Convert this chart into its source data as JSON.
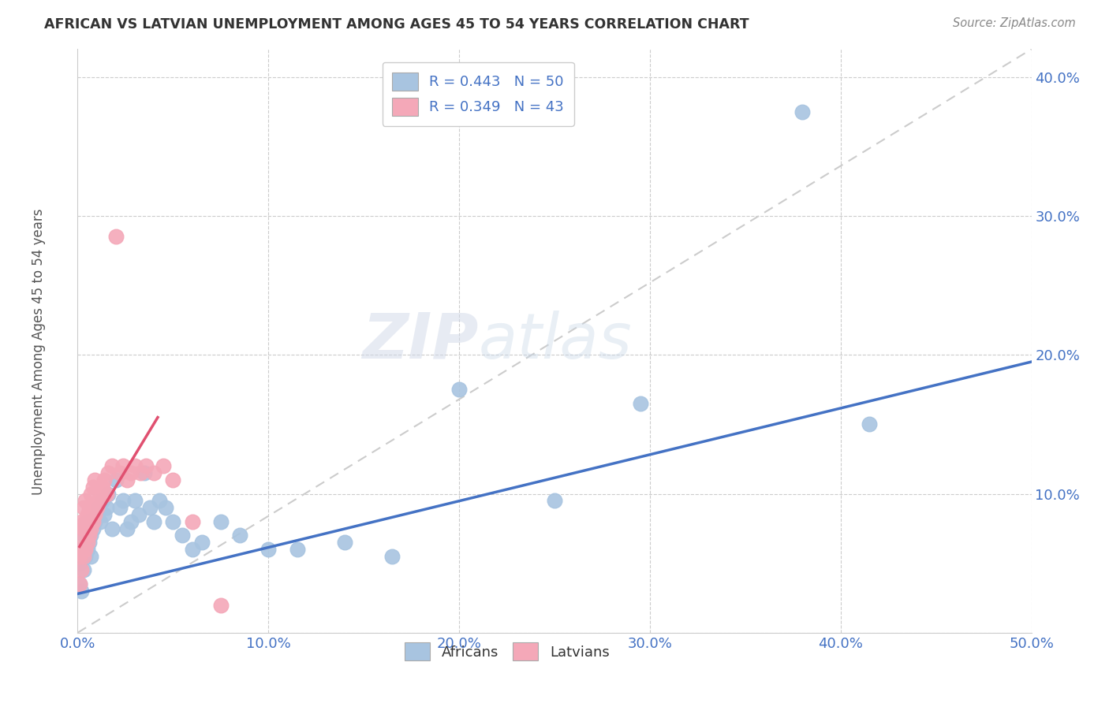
{
  "title": "AFRICAN VS LATVIAN UNEMPLOYMENT AMONG AGES 45 TO 54 YEARS CORRELATION CHART",
  "source": "Source: ZipAtlas.com",
  "ylabel": "Unemployment Among Ages 45 to 54 years",
  "xlim": [
    0.0,
    0.5
  ],
  "ylim": [
    0.0,
    0.42
  ],
  "xtick_vals": [
    0.0,
    0.1,
    0.2,
    0.3,
    0.4,
    0.5
  ],
  "ytick_vals": [
    0.0,
    0.1,
    0.2,
    0.3,
    0.4
  ],
  "xtick_labels": [
    "0.0%",
    "10.0%",
    "20.0%",
    "30.0%",
    "40.0%",
    "50.0%"
  ],
  "ytick_labels": [
    "",
    "10.0%",
    "20.0%",
    "30.0%",
    "40.0%"
  ],
  "african_color": "#a8c4e0",
  "african_edge": "#7aafd4",
  "latvian_color": "#f4a8b8",
  "latvian_edge": "#e87a95",
  "african_line_color": "#4472c4",
  "latvian_line_color": "#e05070",
  "african_R": 0.443,
  "african_N": 50,
  "latvian_R": 0.349,
  "latvian_N": 43,
  "africans_x": [
    0.001,
    0.001,
    0.002,
    0.002,
    0.003,
    0.003,
    0.004,
    0.004,
    0.005,
    0.005,
    0.006,
    0.007,
    0.007,
    0.008,
    0.009,
    0.01,
    0.011,
    0.012,
    0.013,
    0.014,
    0.015,
    0.016,
    0.018,
    0.02,
    0.022,
    0.024,
    0.026,
    0.028,
    0.03,
    0.032,
    0.035,
    0.038,
    0.04,
    0.043,
    0.046,
    0.05,
    0.055,
    0.06,
    0.065,
    0.075,
    0.085,
    0.1,
    0.115,
    0.14,
    0.165,
    0.2,
    0.25,
    0.295,
    0.38,
    0.415
  ],
  "africans_y": [
    0.035,
    0.05,
    0.03,
    0.06,
    0.045,
    0.07,
    0.055,
    0.075,
    0.06,
    0.08,
    0.065,
    0.07,
    0.055,
    0.075,
    0.08,
    0.085,
    0.09,
    0.08,
    0.095,
    0.085,
    0.09,
    0.1,
    0.075,
    0.11,
    0.09,
    0.095,
    0.075,
    0.08,
    0.095,
    0.085,
    0.115,
    0.09,
    0.08,
    0.095,
    0.09,
    0.08,
    0.07,
    0.06,
    0.065,
    0.08,
    0.07,
    0.06,
    0.06,
    0.065,
    0.055,
    0.175,
    0.095,
    0.165,
    0.375,
    0.15
  ],
  "latvians_x": [
    0.001,
    0.001,
    0.001,
    0.002,
    0.002,
    0.002,
    0.003,
    0.003,
    0.003,
    0.004,
    0.004,
    0.004,
    0.005,
    0.005,
    0.006,
    0.006,
    0.007,
    0.007,
    0.008,
    0.008,
    0.009,
    0.009,
    0.01,
    0.011,
    0.012,
    0.013,
    0.014,
    0.015,
    0.016,
    0.018,
    0.02,
    0.022,
    0.024,
    0.026,
    0.028,
    0.03,
    0.033,
    0.036,
    0.04,
    0.045,
    0.05,
    0.06,
    0.075
  ],
  "latvians_y": [
    0.035,
    0.055,
    0.07,
    0.045,
    0.06,
    0.08,
    0.055,
    0.075,
    0.09,
    0.06,
    0.08,
    0.095,
    0.065,
    0.085,
    0.07,
    0.09,
    0.075,
    0.1,
    0.08,
    0.105,
    0.085,
    0.11,
    0.09,
    0.095,
    0.1,
    0.105,
    0.11,
    0.1,
    0.115,
    0.12,
    0.285,
    0.115,
    0.12,
    0.11,
    0.115,
    0.12,
    0.115,
    0.12,
    0.115,
    0.12,
    0.11,
    0.08,
    0.02
  ],
  "african_line_x": [
    0.0,
    0.5
  ],
  "african_line_y": [
    0.028,
    0.195
  ],
  "latvian_line_x": [
    0.001,
    0.042
  ],
  "latvian_line_y": [
    0.062,
    0.155
  ]
}
